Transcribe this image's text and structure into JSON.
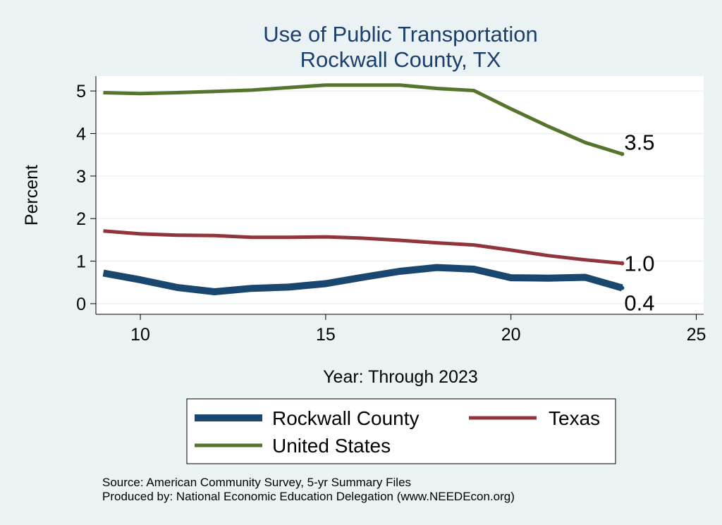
{
  "chart_data": {
    "type": "line",
    "title": "Use of Public Transportation",
    "subtitle": "Rockwall County, TX",
    "xlabel": "Year: Through 2023",
    "ylabel": "Percent",
    "xlim": [
      8.8,
      25.2
    ],
    "ylim": [
      -0.25,
      5.35
    ],
    "xticks": [
      10,
      15,
      20,
      25
    ],
    "yticks": [
      0,
      1,
      2,
      3,
      4,
      5
    ],
    "grid": "horizontal",
    "legend_position": "bottom",
    "x": [
      9,
      10,
      11,
      12,
      13,
      14,
      15,
      16,
      17,
      18,
      19,
      20,
      21,
      22,
      23
    ],
    "series": [
      {
        "name": "Rockwall County",
        "color": "#1a476f",
        "values": [
          0.72,
          0.56,
          0.38,
          0.28,
          0.36,
          0.39,
          0.47,
          0.62,
          0.76,
          0.85,
          0.81,
          0.61,
          0.6,
          0.62,
          0.37
        ],
        "end_label": "0.4"
      },
      {
        "name": "Texas",
        "color": "#90353b",
        "values": [
          1.71,
          1.64,
          1.61,
          1.6,
          1.56,
          1.56,
          1.57,
          1.54,
          1.49,
          1.43,
          1.38,
          1.26,
          1.13,
          1.03,
          0.95
        ],
        "end_label": "1.0"
      },
      {
        "name": "United States",
        "color": "#55752f",
        "values": [
          4.96,
          4.94,
          4.96,
          4.99,
          5.02,
          5.08,
          5.14,
          5.14,
          5.14,
          5.06,
          5.01,
          4.58,
          4.17,
          3.79,
          3.52
        ],
        "end_label": "3.5"
      }
    ]
  },
  "notes": {
    "source": "Source: American Community Survey, 5-yr Summary Files",
    "produced": "Produced by: National Economic Education Delegation (www.NEEDEcon.org)"
  }
}
